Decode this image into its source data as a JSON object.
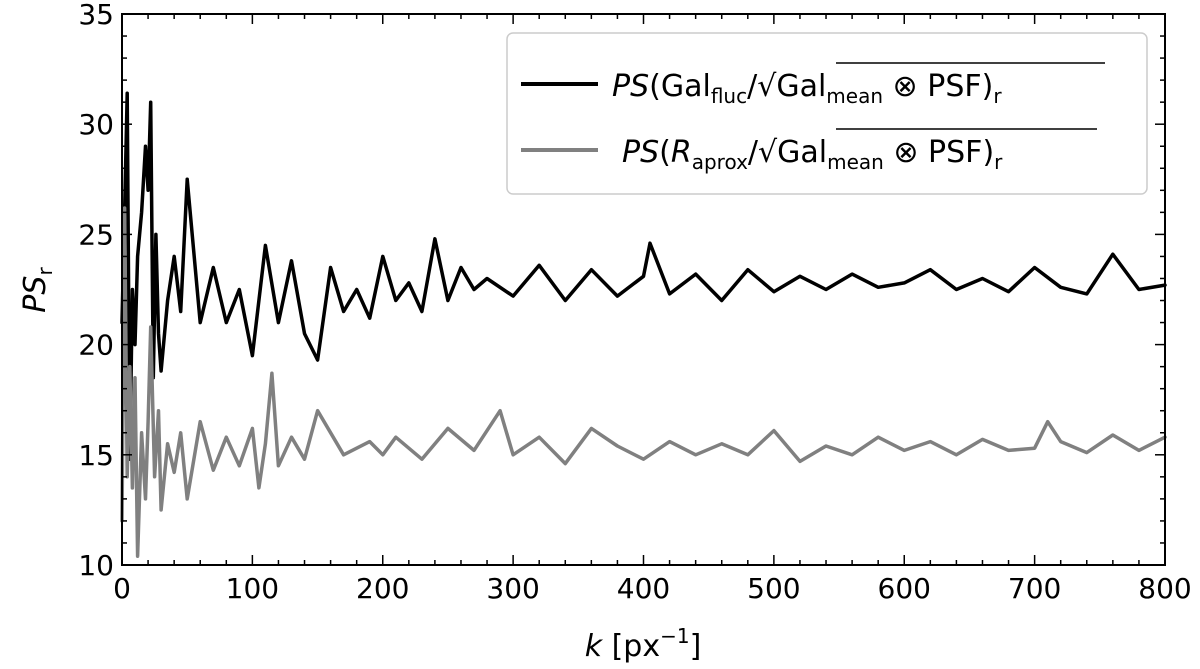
{
  "chart_data": {
    "type": "line",
    "xlabel": {
      "italic": "k",
      "rest": " [px",
      "sup": "−1",
      "close": "]"
    },
    "ylabel": {
      "italic": "PS",
      "sub": "r"
    },
    "xlim": [
      0,
      800
    ],
    "ylim": [
      10,
      35
    ],
    "xticks": [
      "0",
      "100",
      "200",
      "300",
      "400",
      "500",
      "600",
      "700",
      "800"
    ],
    "yticks": [
      "10",
      "15",
      "20",
      "25",
      "30",
      "35"
    ],
    "grid": false,
    "legend_position": "top-right",
    "series": [
      {
        "color": "#000000",
        "legend": {
          "ps": "PS",
          "open": "(Gal",
          "sub1": "fluc",
          "slash": "/",
          "root": "√",
          "gal": "Gal",
          "sub2": "mean",
          "otimes": " ⊗ PSF",
          "close": ")",
          "sub3": "r"
        },
        "x": [
          0,
          2,
          4,
          6,
          8,
          10,
          12,
          15,
          18,
          20,
          22,
          24,
          26,
          28,
          30,
          35,
          40,
          45,
          50,
          60,
          70,
          80,
          90,
          100,
          110,
          120,
          130,
          140,
          150,
          160,
          170,
          180,
          190,
          200,
          210,
          220,
          230,
          240,
          250,
          260,
          270,
          280,
          300,
          320,
          340,
          360,
          380,
          400,
          405,
          420,
          440,
          460,
          480,
          500,
          520,
          540,
          560,
          580,
          600,
          620,
          640,
          660,
          680,
          700,
          720,
          740,
          760,
          780,
          800
        ],
        "values": [
          21.0,
          26.0,
          31.4,
          14.8,
          22.5,
          20.0,
          24.0,
          26.0,
          29.0,
          27.0,
          31.0,
          18.5,
          25.0,
          20.5,
          18.8,
          22.0,
          24.0,
          21.5,
          27.5,
          21.0,
          23.5,
          21.0,
          22.5,
          19.5,
          24.5,
          21.0,
          23.8,
          20.5,
          19.3,
          23.5,
          21.5,
          22.5,
          21.2,
          24.0,
          22.0,
          22.8,
          21.5,
          24.8,
          22.0,
          23.5,
          22.5,
          23.0,
          22.2,
          23.6,
          22.0,
          23.4,
          22.2,
          23.1,
          24.6,
          22.3,
          23.2,
          22.0,
          23.4,
          22.4,
          23.1,
          22.5,
          23.2,
          22.6,
          22.8,
          23.4,
          22.5,
          23.0,
          22.4,
          23.5,
          22.6,
          22.3,
          24.1,
          22.5,
          22.7
        ]
      },
      {
        "color": "#808080",
        "legend": {
          "ps": "PS",
          "open": "(",
          "ritalic": "R",
          "sub1": "aprox",
          "slash": "/",
          "root": "√",
          "gal": "Gal",
          "sub2": "mean",
          "otimes": " ⊗ PSF",
          "close": ")",
          "sub3": "r"
        },
        "x": [
          0,
          2,
          4,
          6,
          8,
          10,
          12,
          15,
          18,
          20,
          22,
          25,
          28,
          30,
          35,
          40,
          45,
          50,
          60,
          70,
          80,
          90,
          100,
          105,
          110,
          115,
          120,
          130,
          140,
          150,
          170,
          190,
          200,
          210,
          230,
          250,
          270,
          290,
          300,
          320,
          340,
          360,
          380,
          400,
          420,
          440,
          460,
          480,
          500,
          520,
          540,
          560,
          580,
          600,
          620,
          640,
          660,
          680,
          700,
          710,
          720,
          740,
          760,
          780,
          800
        ],
        "values": [
          12.0,
          26.2,
          14.0,
          19.0,
          13.5,
          18.5,
          10.4,
          16.0,
          13.0,
          16.5,
          20.8,
          14.0,
          17.0,
          12.5,
          15.5,
          14.2,
          16.0,
          13.0,
          16.5,
          14.3,
          15.8,
          14.5,
          16.2,
          13.5,
          15.5,
          18.7,
          14.5,
          15.8,
          14.8,
          17.0,
          15.0,
          15.6,
          15.0,
          15.8,
          14.8,
          16.2,
          15.2,
          17.0,
          15.0,
          15.8,
          14.6,
          16.2,
          15.4,
          14.8,
          15.6,
          15.0,
          15.5,
          15.0,
          16.1,
          14.7,
          15.4,
          15.0,
          15.8,
          15.2,
          15.6,
          15.0,
          15.7,
          15.2,
          15.3,
          16.5,
          15.6,
          15.1,
          15.9,
          15.2,
          15.8
        ]
      }
    ]
  }
}
